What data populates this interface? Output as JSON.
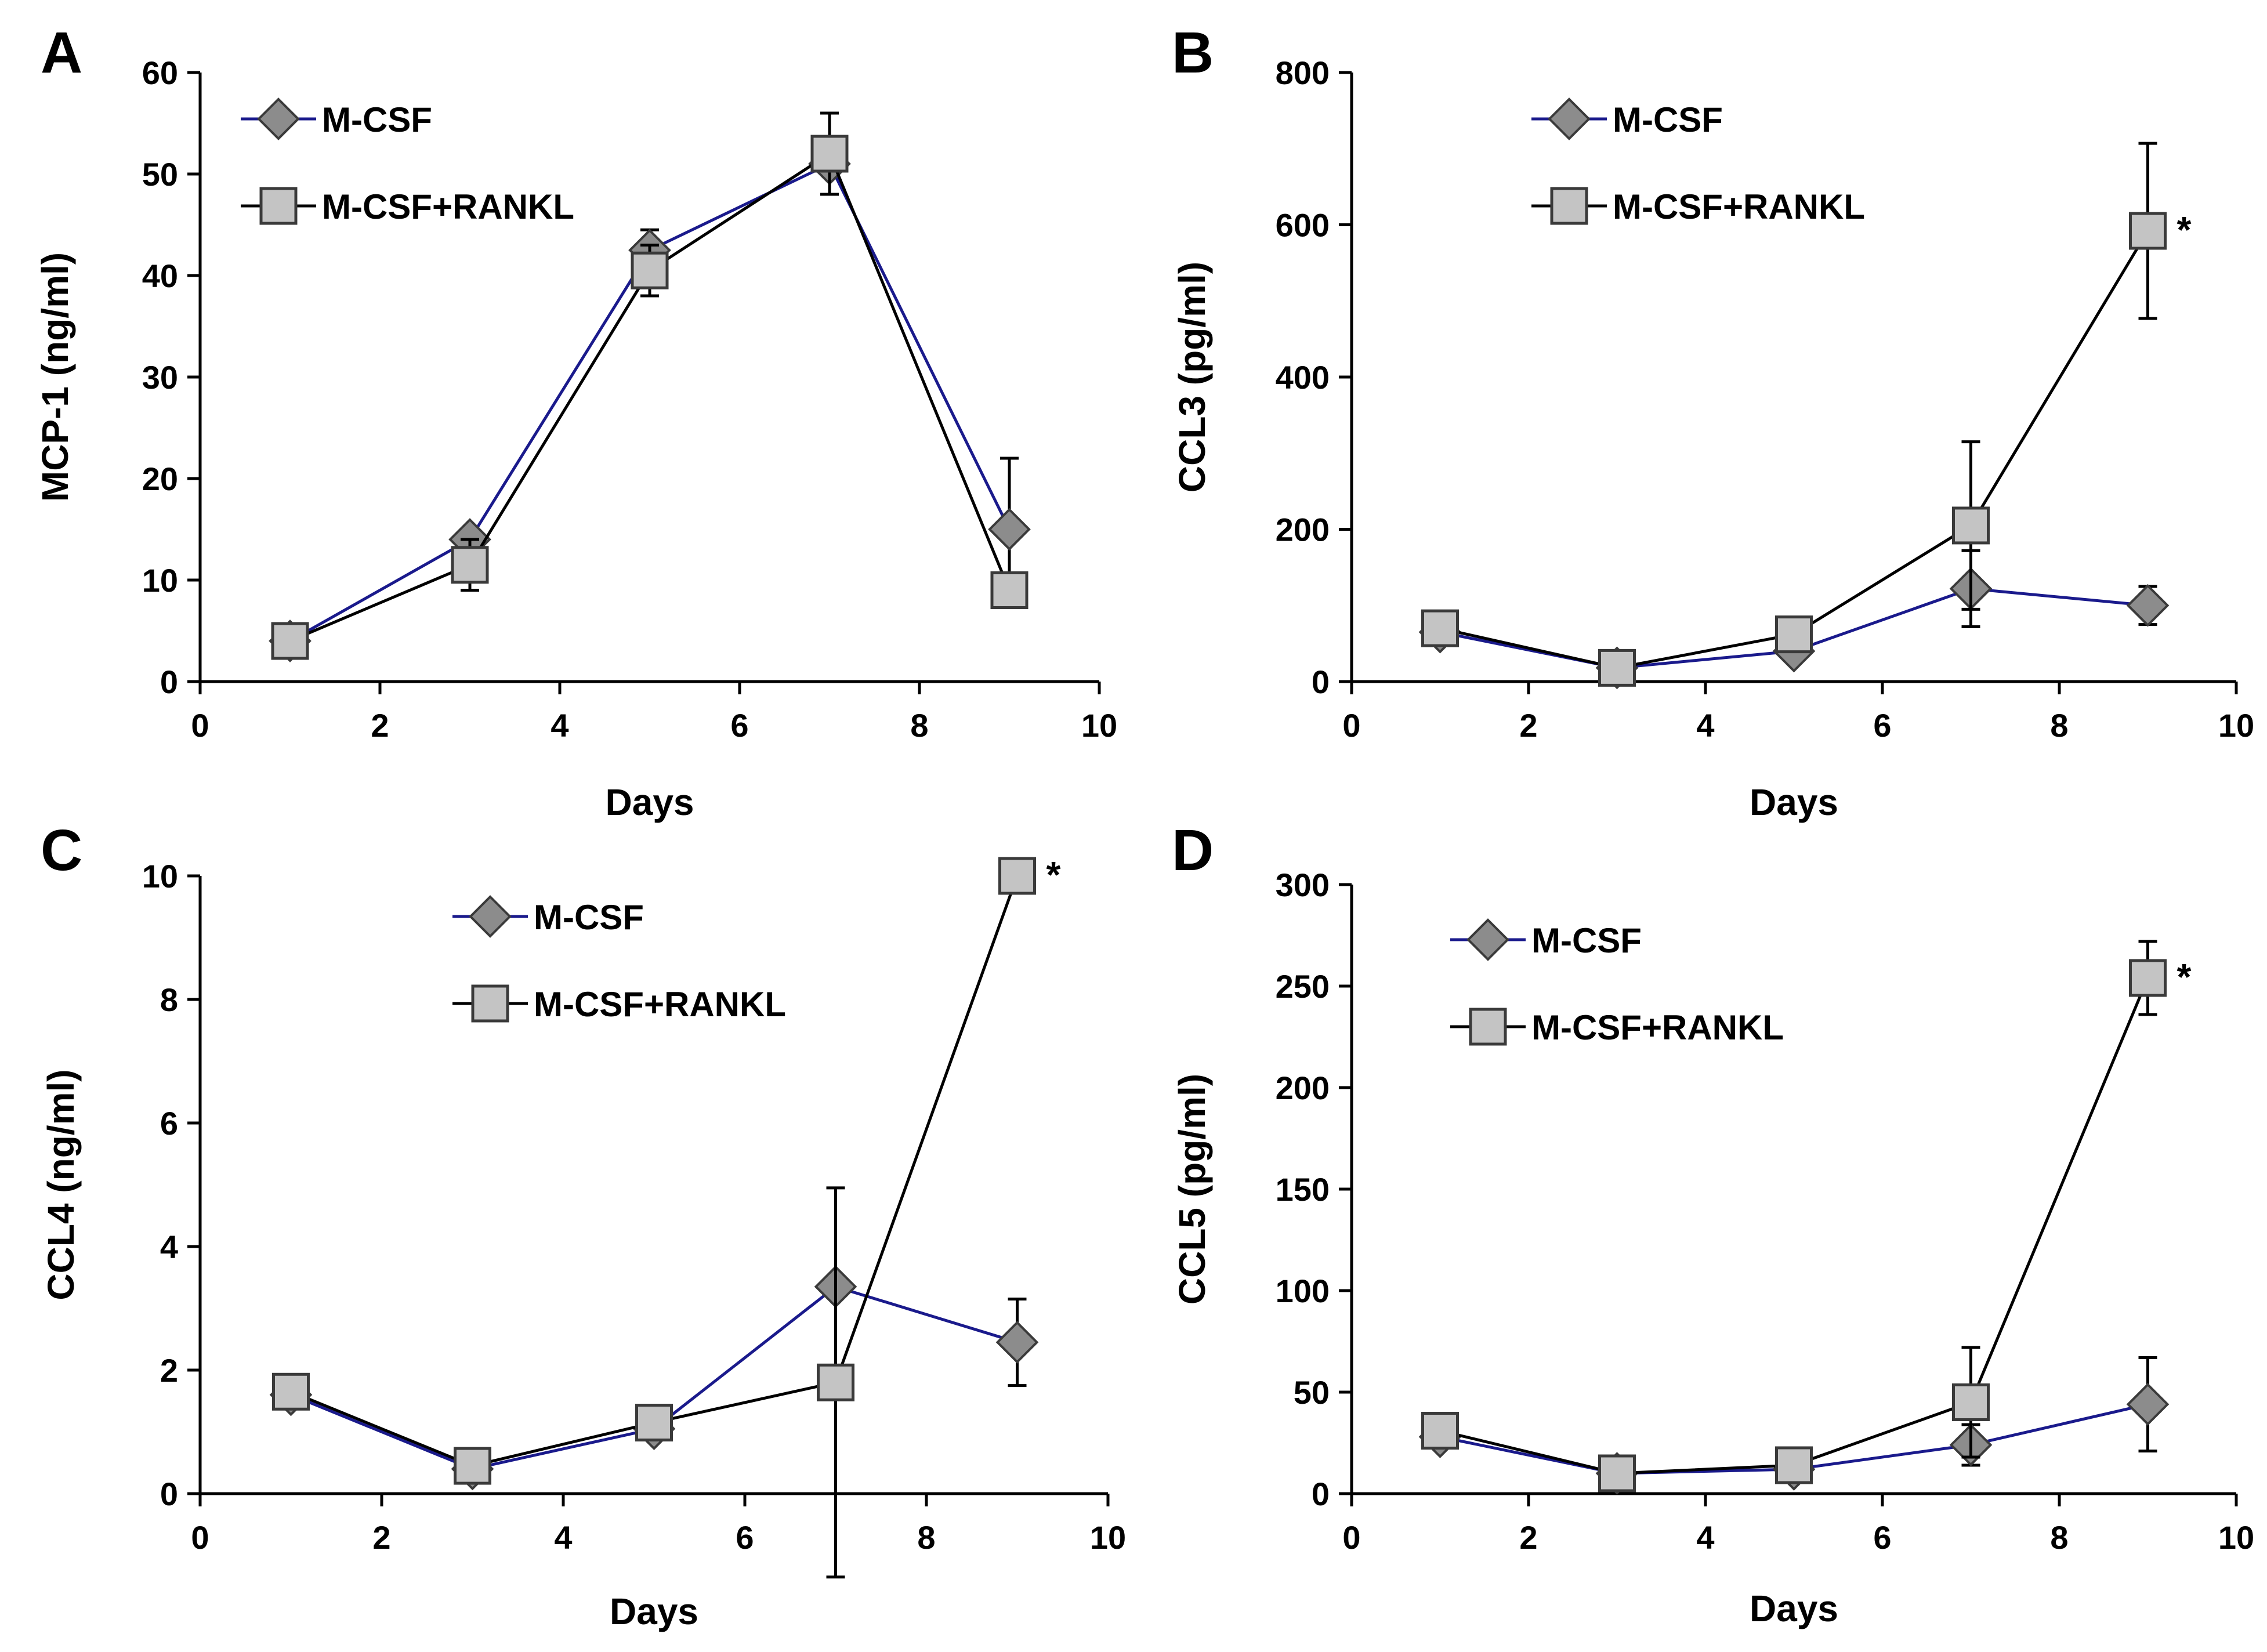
{
  "chart_data": [
    {
      "type": "line",
      "panel": "A",
      "ylabel": "MCP-1 (ng/ml)",
      "xlabel": "Days",
      "xlim": [
        0,
        10
      ],
      "ylim": [
        0,
        60
      ],
      "xticks": [
        "0",
        "2",
        "4",
        "6",
        "8",
        "10"
      ],
      "yticks": [
        "0",
        "10",
        "20",
        "30",
        "40",
        "50",
        "60"
      ],
      "x": [
        1,
        3,
        5,
        7,
        9
      ],
      "legend_position": "top-left",
      "series": [
        {
          "name": "M-CSF",
          "marker": "diamond",
          "color": "#1a1a8c",
          "values": [
            4,
            14,
            42.5,
            51,
            15
          ],
          "errors": [
            0,
            0,
            2,
            0,
            7
          ]
        },
        {
          "name": "M-CSF+RANKL",
          "marker": "square",
          "color": "#000000",
          "values": [
            4,
            11.5,
            40.5,
            52,
            9
          ],
          "errors": [
            0,
            2.5,
            2.5,
            4,
            0
          ]
        }
      ],
      "significance": [],
      "annotation": ""
    },
    {
      "type": "line",
      "panel": "B",
      "ylabel": "CCL3 (pg/ml)",
      "xlabel": "Days",
      "xlim": [
        0,
        10
      ],
      "ylim": [
        0,
        800
      ],
      "xticks": [
        "0",
        "2",
        "4",
        "6",
        "8",
        "10"
      ],
      "yticks": [
        "0",
        "200",
        "400",
        "600",
        "800"
      ],
      "x": [
        1,
        3,
        5,
        7,
        9
      ],
      "legend_position": "top-center",
      "series": [
        {
          "name": "M-CSF",
          "marker": "diamond",
          "color": "#1a1a8c",
          "values": [
            65,
            18,
            40,
            122,
            100
          ],
          "errors": [
            0,
            0,
            0,
            50,
            25
          ]
        },
        {
          "name": "M-CSF+RANKL",
          "marker": "square",
          "color": "#000000",
          "values": [
            70,
            18,
            62,
            205,
            592
          ],
          "errors": [
            0,
            0,
            0,
            110,
            115
          ]
        }
      ],
      "significance": [
        9
      ],
      "annotation": "*"
    },
    {
      "type": "line",
      "panel": "C",
      "ylabel": "CCL4 (ng/ml)",
      "xlabel": "Days",
      "xlim": [
        0,
        10
      ],
      "ylim": [
        0,
        10
      ],
      "xticks": [
        "0",
        "2",
        "4",
        "6",
        "8",
        "10"
      ],
      "yticks": [
        "0",
        "2",
        "4",
        "6",
        "8",
        "10"
      ],
      "x": [
        1,
        3,
        5,
        7,
        9
      ],
      "legend_position": "top-center",
      "series": [
        {
          "name": "M-CSF",
          "marker": "diamond",
          "color": "#1a1a8c",
          "values": [
            1.6,
            0.4,
            1.05,
            3.35,
            2.45
          ],
          "errors": [
            0,
            0,
            0,
            0,
            0.7
          ]
        },
        {
          "name": "M-CSF+RANKL",
          "marker": "square",
          "color": "#000000",
          "values": [
            1.65,
            0.45,
            1.15,
            1.8,
            10
          ],
          "errors": [
            0,
            0,
            0,
            3.15,
            0
          ]
        }
      ],
      "significance": [
        9
      ],
      "annotation": "*"
    },
    {
      "type": "line",
      "panel": "D",
      "ylabel": "CCL5 (pg/ml)",
      "xlabel": "Days",
      "xlim": [
        0,
        10
      ],
      "ylim": [
        0,
        300
      ],
      "xticks": [
        "0",
        "2",
        "4",
        "6",
        "8",
        "10"
      ],
      "yticks": [
        "0",
        "50",
        "100",
        "150",
        "200",
        "250",
        "300"
      ],
      "x": [
        1,
        3,
        5,
        7,
        9
      ],
      "legend_position": "top-center",
      "series": [
        {
          "name": "M-CSF",
          "marker": "diamond",
          "color": "#1a1a8c",
          "values": [
            28,
            10,
            12,
            24,
            44
          ],
          "errors": [
            0,
            0,
            0,
            10,
            23
          ]
        },
        {
          "name": "M-CSF+RANKL",
          "marker": "square",
          "color": "#000000",
          "values": [
            31,
            10,
            14,
            45,
            254
          ],
          "errors": [
            0,
            0,
            0,
            27,
            18
          ]
        }
      ],
      "significance": [
        9
      ],
      "annotation": "*"
    }
  ]
}
